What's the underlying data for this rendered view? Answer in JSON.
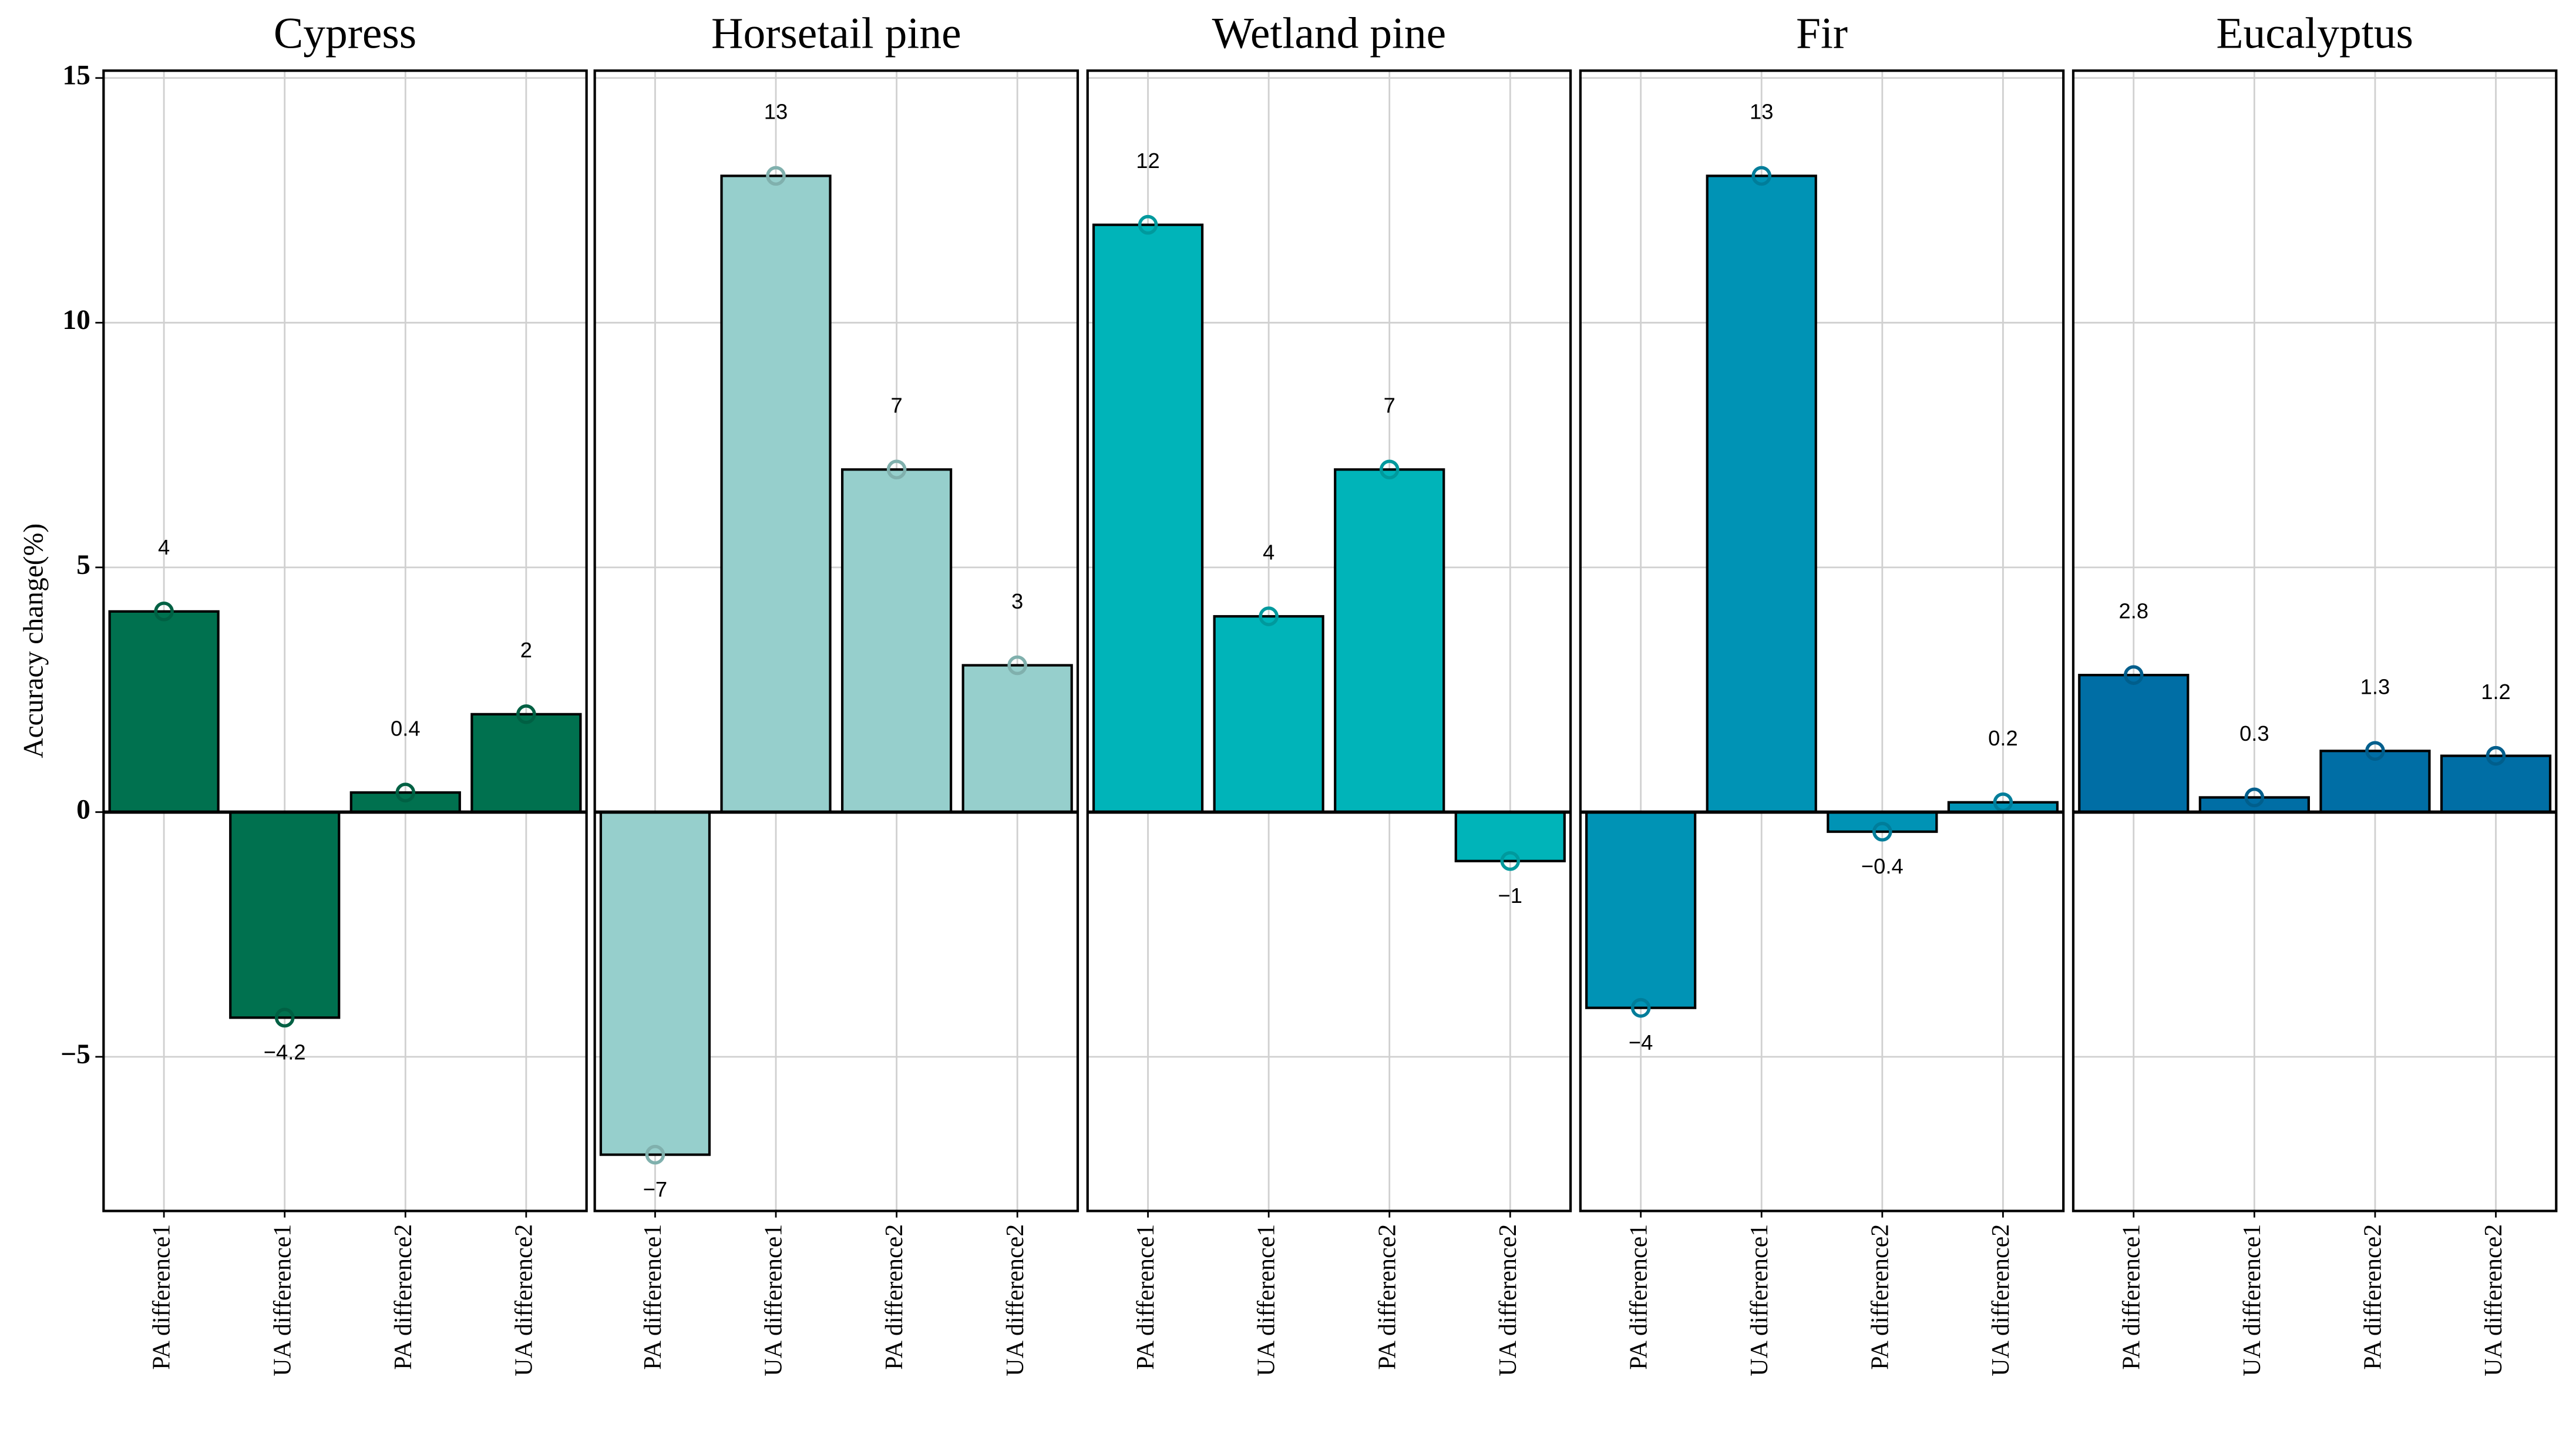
{
  "chart_data": [
    {
      "type": "bar",
      "title": "Cypress",
      "ylabel": "Accuracy change(%)",
      "categories": [
        "PA difference1",
        "UA difference1",
        "PA difference2",
        "UA difference2"
      ],
      "values": [
        4.1,
        -4.2,
        0.4,
        2
      ],
      "value_labels": [
        "4",
        "−4.2",
        "0.4",
        "2"
      ],
      "color": "#00714f",
      "ylim": [
        -8.15,
        15.15
      ],
      "yticks": [
        {
          "value": -5,
          "label": "−5"
        },
        0,
        5,
        10,
        15
      ],
      "grid": true
    },
    {
      "type": "bar",
      "title": "Horsetail pine",
      "categories": [
        "PA difference1",
        "UA difference1",
        "PA difference2",
        "UA difference2"
      ],
      "values": [
        -7,
        13,
        7,
        3
      ],
      "value_labels": [
        "−7",
        "13",
        "7",
        "3"
      ],
      "color": "#96cfcc",
      "ylim": [
        -8.15,
        15.15
      ],
      "yticks": [
        -5,
        0,
        5,
        10,
        15
      ],
      "grid": true
    },
    {
      "type": "bar",
      "title": "Wetland pine",
      "categories": [
        "PA difference1",
        "UA difference1",
        "PA difference2",
        "UA difference2"
      ],
      "values": [
        12,
        4,
        7,
        -1
      ],
      "value_labels": [
        "12",
        "4",
        "7",
        "−1"
      ],
      "color": "#00b4b9",
      "ylim": [
        -8.15,
        15.15
      ],
      "yticks": [
        -5,
        0,
        5,
        10,
        15
      ],
      "grid": true
    },
    {
      "type": "bar",
      "title": "Fir",
      "categories": [
        "PA difference1",
        "UA difference1",
        "PA difference2",
        "UA difference2"
      ],
      "values": [
        -4,
        13,
        -0.4,
        0.2
      ],
      "value_labels": [
        "−4",
        "13",
        "−0.4",
        "0.2"
      ],
      "color": "#0093b5",
      "ylim": [
        -8.15,
        15.15
      ],
      "yticks": [
        -5,
        0,
        5,
        10,
        15
      ],
      "grid": true
    },
    {
      "type": "bar",
      "title": "Eucalyptus",
      "categories": [
        "PA difference1",
        "UA difference1",
        "PA difference2",
        "UA difference2"
      ],
      "values": [
        2.8,
        0.3,
        1.25,
        1.15
      ],
      "value_labels": [
        "2.8",
        "0.3",
        "1.3",
        "1.2"
      ],
      "color": "#006ea5",
      "ylim": [
        -8.15,
        15.15
      ],
      "yticks": [
        -5,
        0,
        5,
        10,
        15
      ],
      "grid": true
    }
  ]
}
